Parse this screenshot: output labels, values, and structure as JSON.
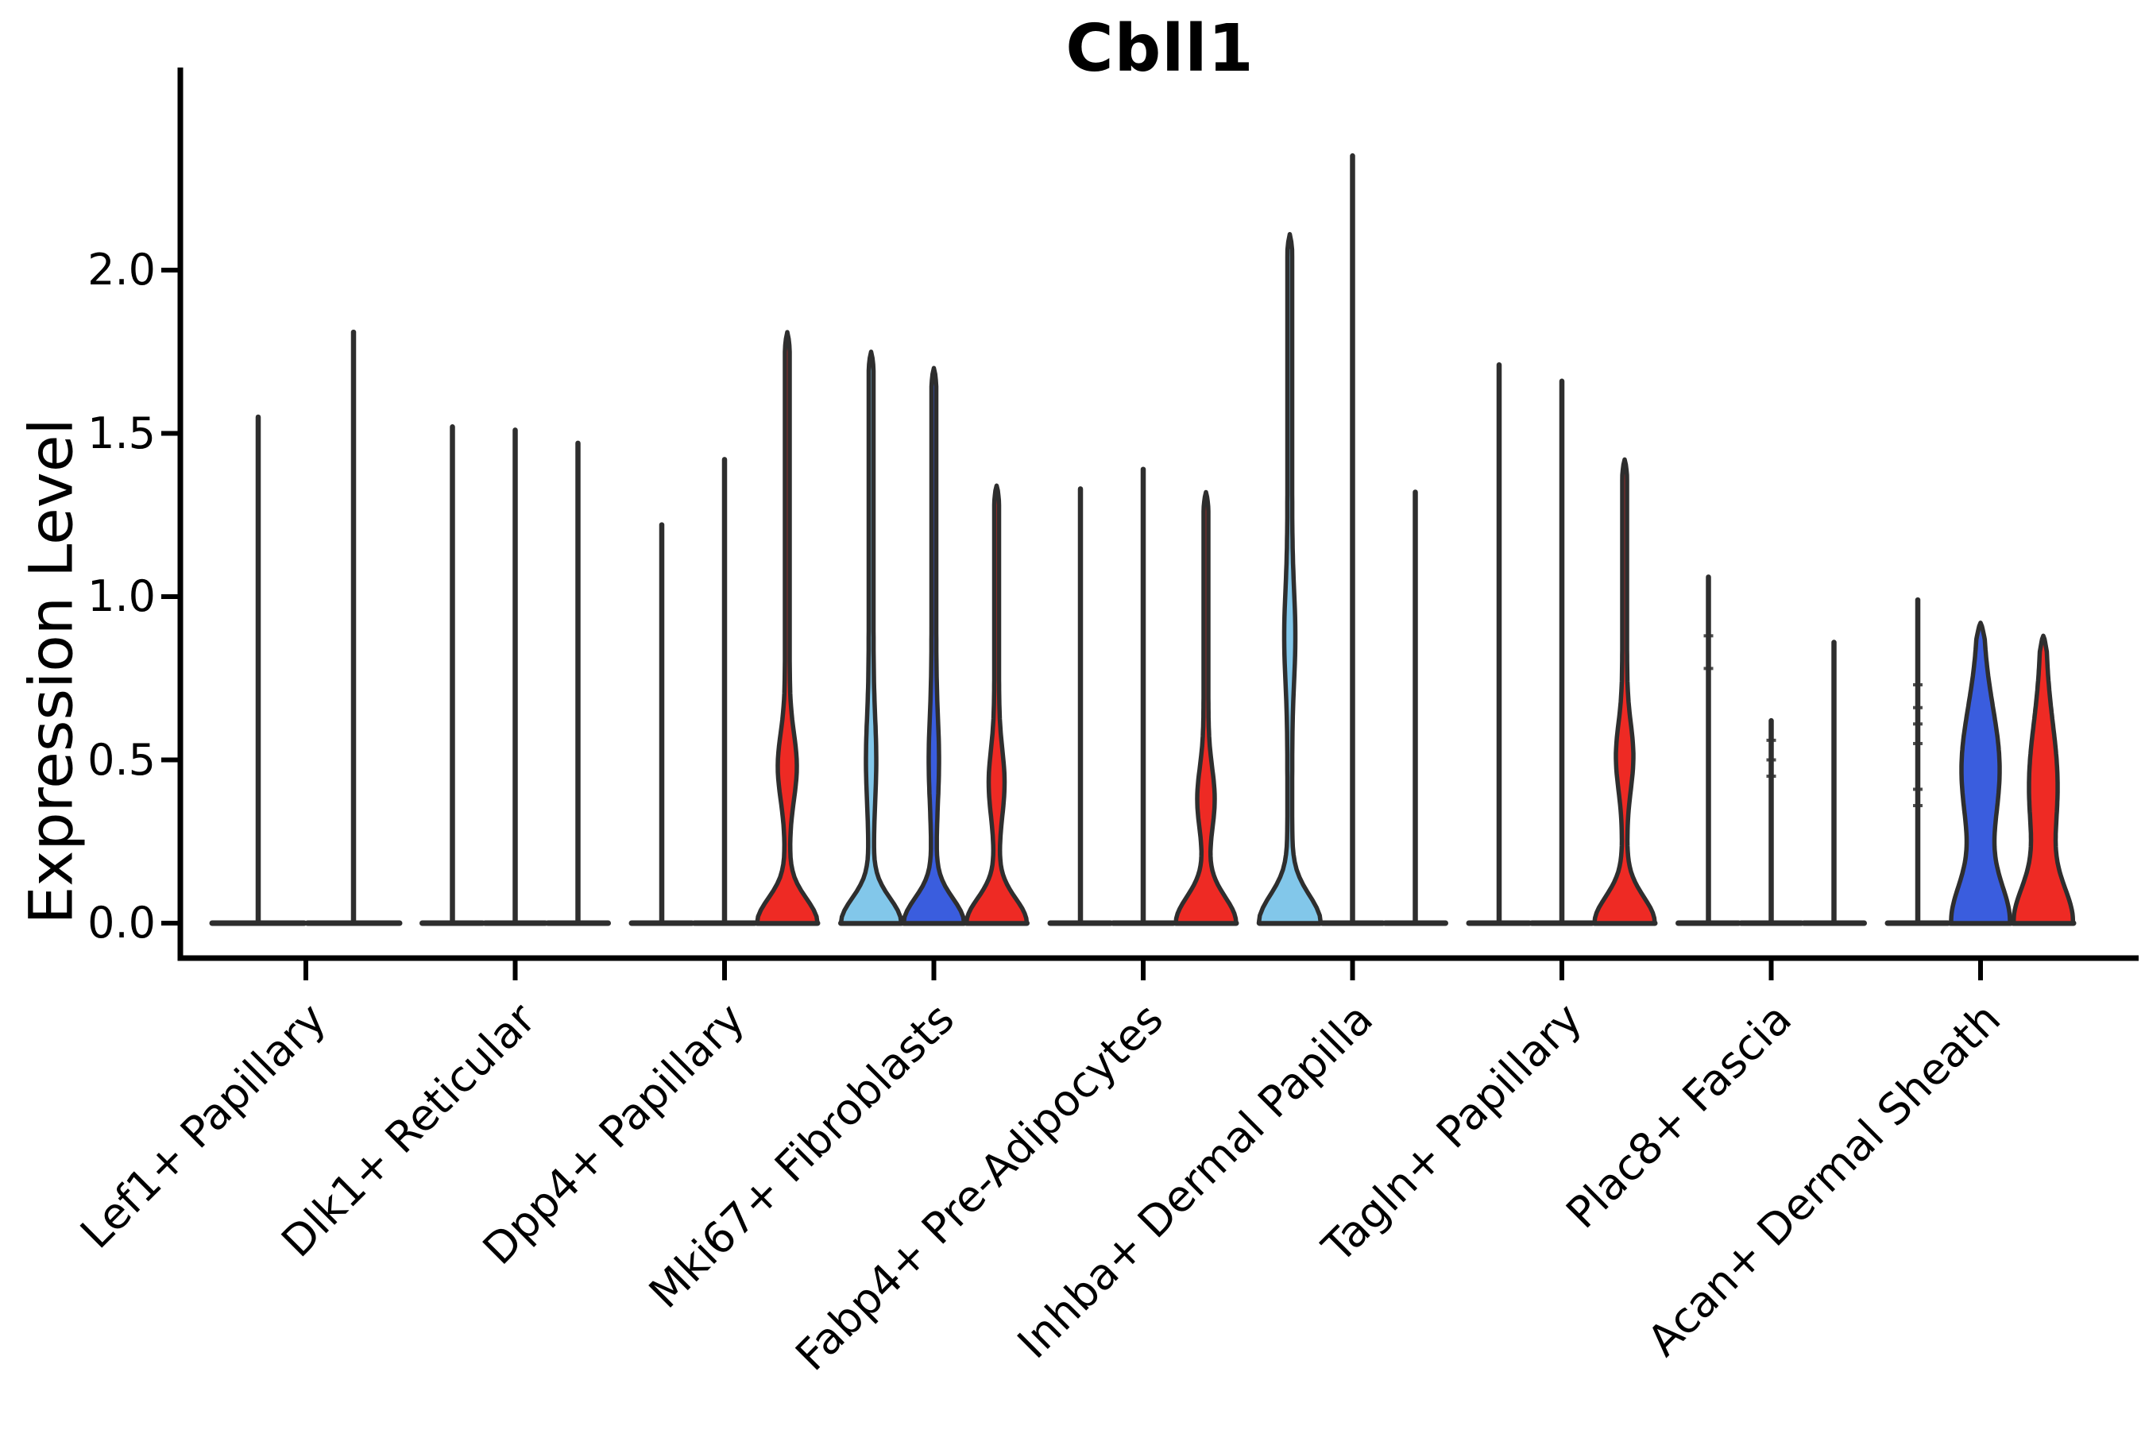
{
  "chart_data": {
    "type": "violin",
    "title": "Cbll1",
    "ylabel": "Expression Level",
    "xlabel": "",
    "yticks": [
      "0.0",
      "0.5",
      "1.0",
      "1.5",
      "2.0"
    ],
    "ytick_values": [
      0.0,
      0.5,
      1.0,
      1.5,
      2.0
    ],
    "ylim": [
      0.0,
      2.45
    ],
    "grid": false,
    "legend": "none",
    "categories": [
      "Lef1+ Papillary",
      "Dlk1+ Reticular",
      "Dpp4+ Papillary",
      "Mki67+ Fibroblasts",
      "Fabp4+ Pre-Adipocytes",
      "Inhba+ Dermal Papilla",
      "Tagln+ Papillary",
      "Plac8+ Fascia",
      "Acan+ Dermal Sheath"
    ],
    "palette": {
      "red": "#ee2a24",
      "light_blue": "#82c7ea",
      "dark_blue": "#3a5dde",
      "ink": "#2e2e2e",
      "axis": "#000000",
      "background": "#ffffff"
    },
    "groups": [
      {
        "label": "Lef1+ Papillary",
        "violins": [
          {
            "fill": "none",
            "max": 1.55
          },
          {
            "fill": "none",
            "max": 1.81
          }
        ]
      },
      {
        "label": "Dlk1+ Reticular",
        "violins": [
          {
            "fill": "none",
            "max": 1.52
          },
          {
            "fill": "none",
            "max": 1.51
          },
          {
            "fill": "none",
            "max": 1.47
          }
        ]
      },
      {
        "label": "Dpp4+ Papillary",
        "violins": [
          {
            "fill": "none",
            "max": 1.22
          },
          {
            "fill": "none",
            "max": 1.42
          },
          {
            "fill": "red",
            "max": 1.81,
            "bulge": {
              "c": 0.48,
              "s": 0.1,
              "A": 9
            },
            "base": {
              "A": 35,
              "s": 0.075
            }
          }
        ]
      },
      {
        "label": "Mki67+ Fibroblasts",
        "violins": [
          {
            "fill": "light_blue",
            "max": 1.75,
            "bulge": {
              "c": 0.5,
              "s": 0.13,
              "A": 3.5
            },
            "base": {
              "A": 35,
              "s": 0.075
            }
          },
          {
            "fill": "dark_blue",
            "max": 1.7,
            "bulge": {
              "c": 0.5,
              "s": 0.13,
              "A": 3.5
            },
            "base": {
              "A": 35,
              "s": 0.075
            }
          },
          {
            "fill": "red",
            "max": 1.34,
            "bulge": {
              "c": 0.43,
              "s": 0.1,
              "A": 7
            },
            "base": {
              "A": 35,
              "s": 0.075
            }
          }
        ]
      },
      {
        "label": "Fabp4+ Pre-Adipocytes",
        "violins": [
          {
            "fill": "none",
            "max": 1.33
          },
          {
            "fill": "none",
            "max": 1.39
          },
          {
            "fill": "red",
            "max": 1.32,
            "bulge": {
              "c": 0.38,
              "s": 0.095,
              "A": 8
            },
            "base": {
              "A": 35,
              "s": 0.08
            }
          }
        ]
      },
      {
        "label": "Inhba+ Dermal Papilla",
        "violins": [
          {
            "fill": "light_blue",
            "max": 2.11,
            "bulge": {
              "c": 0.88,
              "s": 0.14,
              "A": 4
            },
            "base": {
              "A": 36,
              "s": 0.085
            }
          },
          {
            "fill": "none",
            "max": 2.35
          },
          {
            "fill": "none",
            "max": 1.32
          }
        ]
      },
      {
        "label": "Tagln+ Papillary",
        "violins": [
          {
            "fill": "none",
            "max": 1.71
          },
          {
            "fill": "none",
            "max": 1.66
          },
          {
            "fill": "red",
            "max": 1.42,
            "bulge": {
              "c": 0.51,
              "s": 0.1,
              "A": 8
            },
            "base": {
              "A": 35,
              "s": 0.08
            }
          }
        ]
      },
      {
        "label": "Plac8+ Fascia",
        "violins": [
          {
            "fill": "none",
            "max": 1.06,
            "points": [
              0.78,
              0.88
            ]
          },
          {
            "fill": "none",
            "max": 0.62,
            "points": [
              0.45,
              0.5,
              0.56
            ]
          },
          {
            "fill": "none",
            "max": 0.86
          }
        ]
      },
      {
        "label": "Acan+ Dermal Sheath",
        "violins": [
          {
            "fill": "none",
            "max": 0.99,
            "points": [
              0.36,
              0.41,
              0.55,
              0.61,
              0.66,
              0.73
            ]
          },
          {
            "fill": "dark_blue",
            "max": 0.92,
            "bulge": {
              "c": 0.47,
              "s": 0.19,
              "A": 21
            },
            "base": {
              "A": 33,
              "s": 0.12
            }
          },
          {
            "fill": "red",
            "max": 0.88,
            "bulge": {
              "c": 0.42,
              "s": 0.19,
              "A": 15
            },
            "base": {
              "A": 33,
              "s": 0.11
            }
          }
        ]
      }
    ]
  }
}
